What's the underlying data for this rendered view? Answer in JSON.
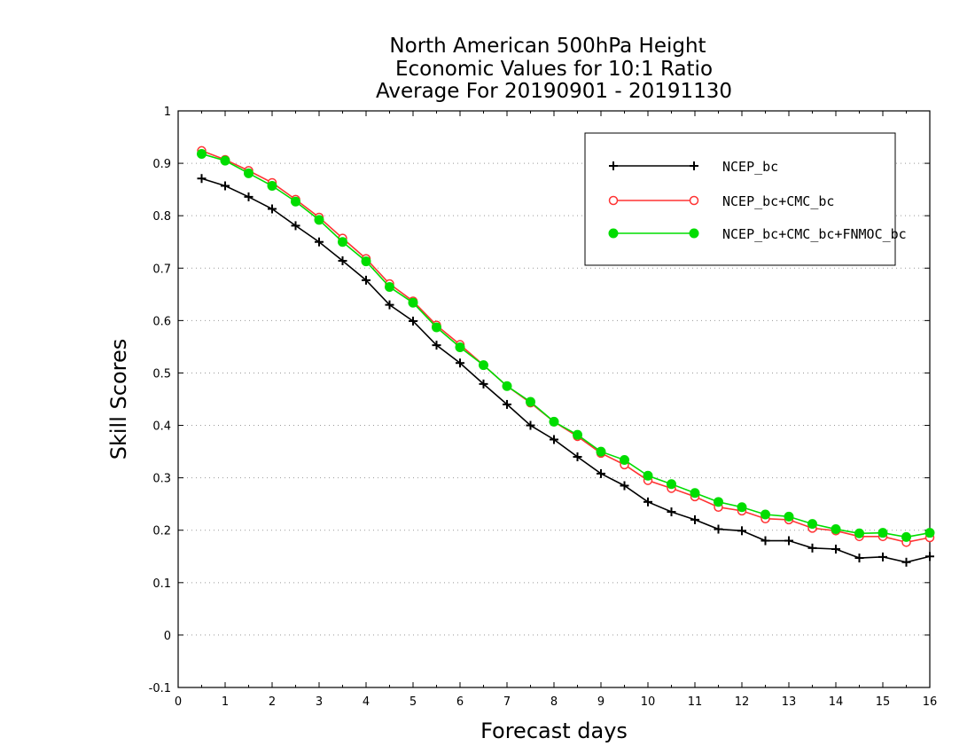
{
  "chart_data": {
    "type": "line",
    "title_lines": [
      "North American 500hPa Height",
      "Economic Values for 10:1 Ratio",
      "Average For 20190901 - 20191130"
    ],
    "xlabel": "Forecast days",
    "ylabel": "Skill Scores",
    "xlim": [
      0,
      16
    ],
    "ylim": [
      -0.1,
      1
    ],
    "xticks": [
      0,
      1,
      2,
      3,
      4,
      5,
      6,
      7,
      8,
      9,
      10,
      11,
      12,
      13,
      14,
      15,
      16
    ],
    "yticks": [
      -0.1,
      0,
      0.1,
      0.2,
      0.3,
      0.4,
      0.5,
      0.6,
      0.7,
      0.8,
      0.9,
      1
    ],
    "ytick_labels": [
      "-0.1",
      "0",
      "0.1",
      "0.2",
      "0.3",
      "0.4",
      "0.5",
      "0.6",
      "0.7",
      "0.8",
      "0.9",
      "1"
    ],
    "grid": "horizontal dotted",
    "legend_position": "top-right",
    "x": [
      0.5,
      1,
      1.5,
      2,
      2.5,
      3,
      3.5,
      4,
      4.5,
      5,
      5.5,
      6,
      6.5,
      7,
      7.5,
      8,
      8.5,
      9,
      9.5,
      10,
      10.5,
      11,
      11.5,
      12,
      12.5,
      13,
      13.5,
      14,
      14.5,
      15,
      15.5,
      16
    ],
    "series": [
      {
        "name": "NCEP_bc",
        "color": "#000000",
        "marker": "plus",
        "values": [
          0.871,
          0.857,
          0.836,
          0.813,
          0.781,
          0.75,
          0.714,
          0.677,
          0.63,
          0.599,
          0.553,
          0.519,
          0.479,
          0.44,
          0.4,
          0.373,
          0.34,
          0.308,
          0.285,
          0.254,
          0.235,
          0.22,
          0.202,
          0.199,
          0.18,
          0.18,
          0.166,
          0.164,
          0.147,
          0.149,
          0.139,
          0.15
        ]
      },
      {
        "name": "NCEP_bc+CMC_bc",
        "color": "#ff3333",
        "marker": "open-circle",
        "values": [
          0.924,
          0.907,
          0.886,
          0.863,
          0.831,
          0.797,
          0.757,
          0.718,
          0.67,
          0.637,
          0.591,
          0.554,
          0.515,
          0.475,
          0.443,
          0.407,
          0.379,
          0.347,
          0.325,
          0.295,
          0.28,
          0.264,
          0.244,
          0.237,
          0.222,
          0.22,
          0.204,
          0.199,
          0.188,
          0.188,
          0.177,
          0.186
        ]
      },
      {
        "name": "NCEP_bc+CMC_bc+FNMOC_bc",
        "color": "#00dd00",
        "marker": "filled-circle",
        "values": [
          0.918,
          0.905,
          0.881,
          0.857,
          0.827,
          0.792,
          0.75,
          0.713,
          0.664,
          0.634,
          0.587,
          0.549,
          0.515,
          0.475,
          0.445,
          0.407,
          0.382,
          0.35,
          0.334,
          0.304,
          0.288,
          0.271,
          0.254,
          0.244,
          0.23,
          0.226,
          0.212,
          0.202,
          0.194,
          0.195,
          0.187,
          0.195
        ]
      }
    ]
  }
}
